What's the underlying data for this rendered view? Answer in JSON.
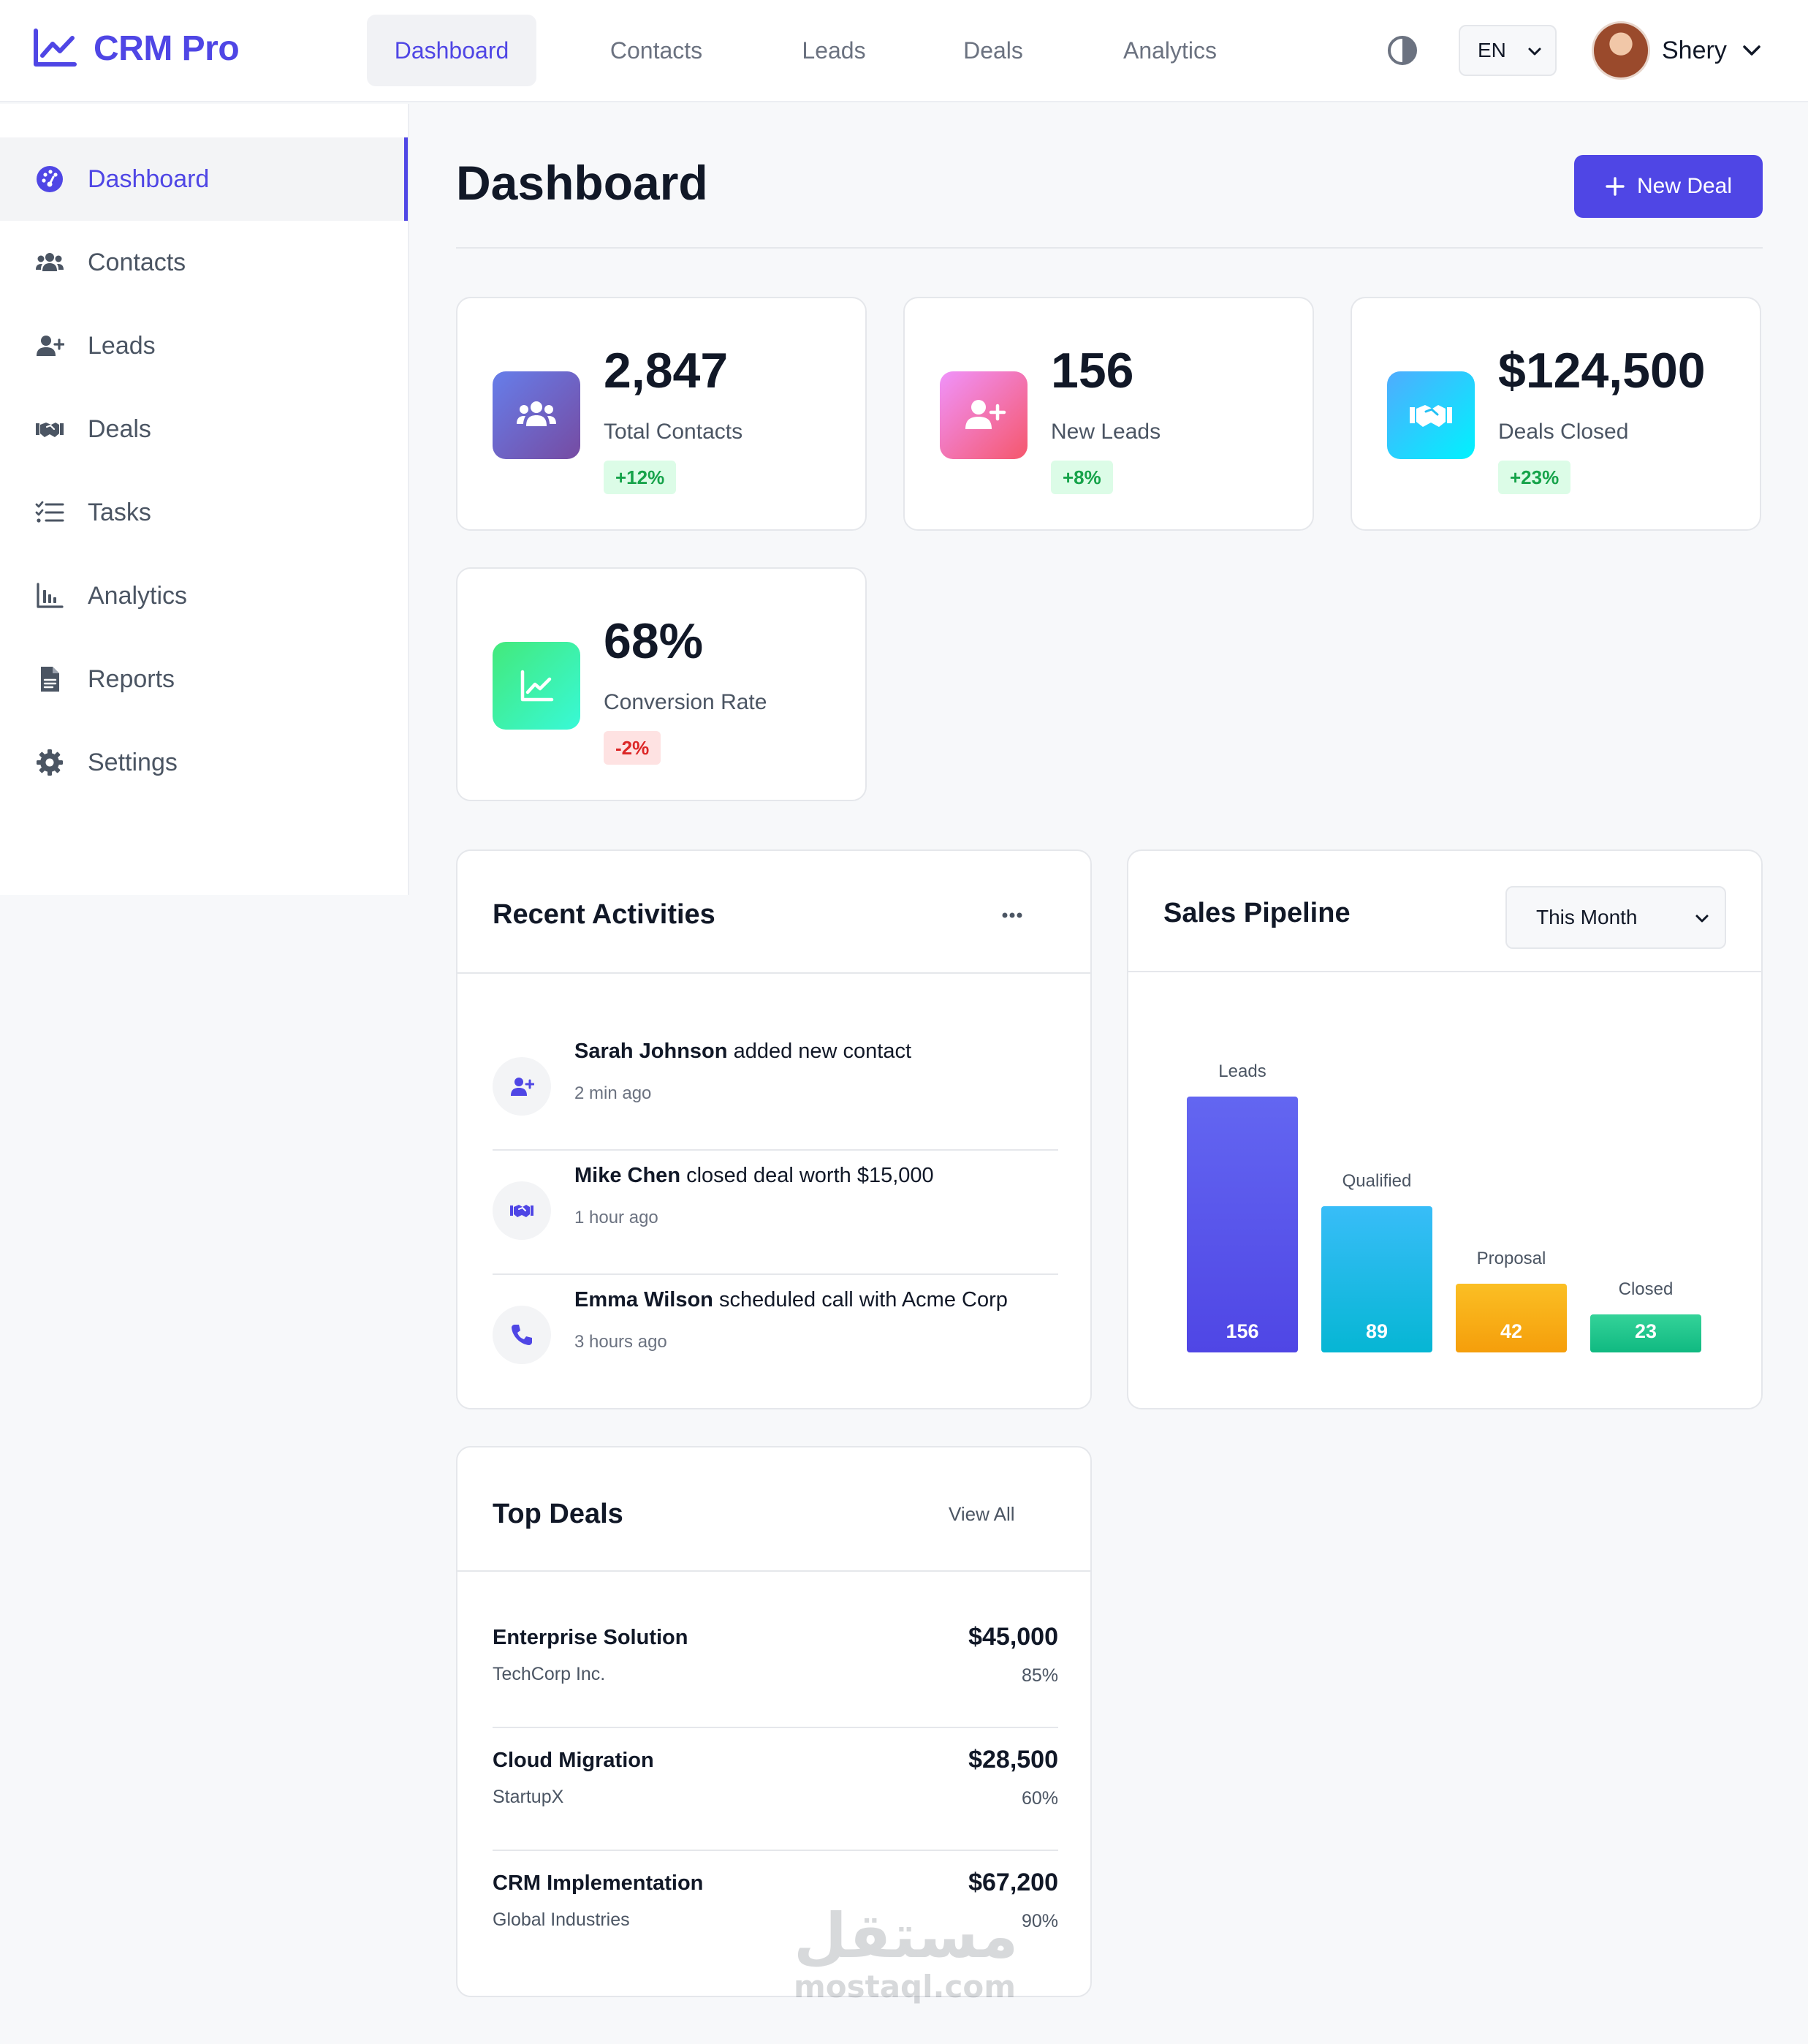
{
  "brand": {
    "name": "CRM Pro",
    "icon": "chart-line-icon",
    "accent_color": "#4f46e5"
  },
  "topnav": {
    "items": [
      {
        "label": "Dashboard",
        "active": true
      },
      {
        "label": "Contacts"
      },
      {
        "label": "Leads"
      },
      {
        "label": "Deals"
      },
      {
        "label": "Analytics"
      }
    ],
    "language": "EN",
    "user_name": "Shery"
  },
  "sidebar": {
    "items": [
      {
        "label": "Dashboard",
        "icon": "dashboard-icon",
        "active": true
      },
      {
        "label": "Contacts",
        "icon": "users-icon"
      },
      {
        "label": "Leads",
        "icon": "user-plus-icon"
      },
      {
        "label": "Deals",
        "icon": "handshake-icon"
      },
      {
        "label": "Tasks",
        "icon": "tasks-icon"
      },
      {
        "label": "Analytics",
        "icon": "bar-chart-icon"
      },
      {
        "label": "Reports",
        "icon": "file-icon"
      },
      {
        "label": "Settings",
        "icon": "gear-icon"
      }
    ]
  },
  "page": {
    "title": "Dashboard",
    "new_deal_label": "New Deal"
  },
  "stats": [
    {
      "value": "2,847",
      "label": "Total Contacts",
      "change": "+12%",
      "trend": "up",
      "icon": "users-icon",
      "gradient": [
        "#667eea",
        "#764ba2"
      ]
    },
    {
      "value": "156",
      "label": "New Leads",
      "change": "+8%",
      "trend": "up",
      "icon": "user-plus-icon",
      "gradient": [
        "#f093fb",
        "#f5576c"
      ]
    },
    {
      "value": "$124,500",
      "label": "Deals Closed",
      "change": "+23%",
      "trend": "up",
      "icon": "handshake-icon",
      "gradient": [
        "#4facfe",
        "#00f2fe"
      ]
    },
    {
      "value": "68%",
      "label": "Conversion Rate",
      "change": "-2%",
      "trend": "down",
      "icon": "chart-line-icon",
      "gradient": [
        "#43e97b",
        "#38f9d7"
      ]
    }
  ],
  "activities": {
    "title": "Recent Activities",
    "items": [
      {
        "name": "Sarah Johnson",
        "action": "added new contact",
        "time": "2 min ago",
        "icon": "user-plus-icon"
      },
      {
        "name": "Mike Chen",
        "action": "closed deal worth $15,000",
        "time": "1 hour ago",
        "icon": "handshake-icon"
      },
      {
        "name": "Emma Wilson",
        "action": "scheduled call with Acme Corp",
        "time": "3 hours ago",
        "icon": "phone-icon"
      }
    ]
  },
  "pipeline": {
    "title": "Sales Pipeline",
    "period": "This Month"
  },
  "chart_data": {
    "type": "bar",
    "categories": [
      "Leads",
      "Qualified",
      "Proposal",
      "Closed"
    ],
    "values": [
      156,
      89,
      42,
      23
    ],
    "colors": [
      [
        "#6366f1",
        "#4f46e5"
      ],
      [
        "#38bdf8",
        "#06b6d4"
      ],
      [
        "#fbbf24",
        "#f59e0b"
      ],
      [
        "#34d399",
        "#10b981"
      ]
    ],
    "title": "Sales Pipeline",
    "xlabel": "",
    "ylabel": ""
  },
  "top_deals": {
    "title": "Top Deals",
    "view_all": "View All",
    "items": [
      {
        "name": "Enterprise Solution",
        "company": "TechCorp Inc.",
        "amount": "$45,000",
        "probability": "85%"
      },
      {
        "name": "Cloud Migration",
        "company": "StartupX",
        "amount": "$28,500",
        "probability": "60%"
      },
      {
        "name": "CRM Implementation",
        "company": "Global Industries",
        "amount": "$67,200",
        "probability": "90%"
      }
    ]
  },
  "watermark": {
    "arabic": "مستقل",
    "latin": "mostaql.com"
  }
}
